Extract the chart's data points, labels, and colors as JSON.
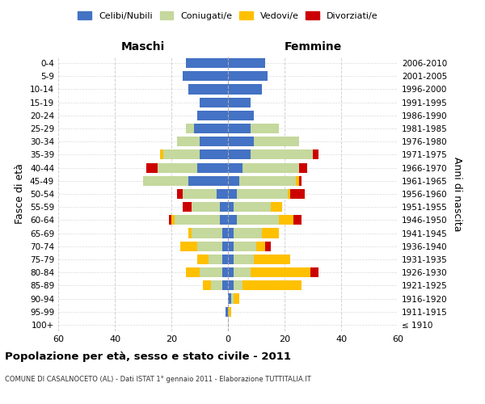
{
  "age_groups": [
    "100+",
    "95-99",
    "90-94",
    "85-89",
    "80-84",
    "75-79",
    "70-74",
    "65-69",
    "60-64",
    "55-59",
    "50-54",
    "45-49",
    "40-44",
    "35-39",
    "30-34",
    "25-29",
    "20-24",
    "15-19",
    "10-14",
    "5-9",
    "0-4"
  ],
  "birth_years": [
    "≤ 1910",
    "1911-1915",
    "1916-1920",
    "1921-1925",
    "1926-1930",
    "1931-1935",
    "1936-1940",
    "1941-1945",
    "1946-1950",
    "1951-1955",
    "1956-1960",
    "1961-1965",
    "1966-1970",
    "1971-1975",
    "1976-1980",
    "1981-1985",
    "1986-1990",
    "1991-1995",
    "1996-2000",
    "2001-2005",
    "2006-2010"
  ],
  "male": {
    "celibi": [
      0,
      1,
      0,
      2,
      2,
      2,
      2,
      2,
      3,
      3,
      4,
      14,
      11,
      10,
      10,
      12,
      11,
      10,
      14,
      16,
      15
    ],
    "coniugati": [
      0,
      0,
      0,
      4,
      8,
      5,
      9,
      11,
      16,
      10,
      12,
      16,
      14,
      13,
      8,
      3,
      0,
      0,
      0,
      0,
      0
    ],
    "vedovi": [
      0,
      0,
      0,
      3,
      5,
      4,
      6,
      1,
      1,
      0,
      0,
      0,
      0,
      1,
      0,
      0,
      0,
      0,
      0,
      0,
      0
    ],
    "divorziati": [
      0,
      0,
      0,
      0,
      0,
      0,
      0,
      0,
      1,
      3,
      2,
      0,
      4,
      0,
      0,
      0,
      0,
      0,
      0,
      0,
      0
    ]
  },
  "female": {
    "nubili": [
      0,
      0,
      1,
      2,
      2,
      2,
      2,
      2,
      3,
      2,
      3,
      4,
      5,
      8,
      9,
      8,
      9,
      8,
      12,
      14,
      13
    ],
    "coniugate": [
      0,
      0,
      1,
      3,
      6,
      7,
      8,
      10,
      15,
      13,
      18,
      20,
      20,
      22,
      16,
      10,
      0,
      0,
      0,
      0,
      0
    ],
    "vedove": [
      0,
      1,
      2,
      21,
      21,
      13,
      3,
      6,
      5,
      4,
      1,
      1,
      0,
      0,
      0,
      0,
      0,
      0,
      0,
      0,
      0
    ],
    "divorziate": [
      0,
      0,
      0,
      0,
      3,
      0,
      2,
      0,
      3,
      0,
      5,
      1,
      3,
      2,
      0,
      0,
      0,
      0,
      0,
      0,
      0
    ]
  },
  "colors": {
    "celibi": "#4472c4",
    "coniugati": "#c5d89d",
    "vedovi": "#ffc000",
    "divorziati": "#cc0000"
  },
  "xlim": 60,
  "title": "Popolazione per età, sesso e stato civile - 2011",
  "subtitle": "COMUNE DI CASALNOCETO (AL) - Dati ISTAT 1° gennaio 2011 - Elaborazione TUTTITALIA.IT",
  "ylabel_left": "Fasce di età",
  "ylabel_right": "Anni di nascita",
  "legend_labels": [
    "Celibi/Nubili",
    "Coniugati/e",
    "Vedovi/e",
    "Divorziati/e"
  ],
  "background_color": "#ffffff",
  "grid_color": "#cccccc"
}
